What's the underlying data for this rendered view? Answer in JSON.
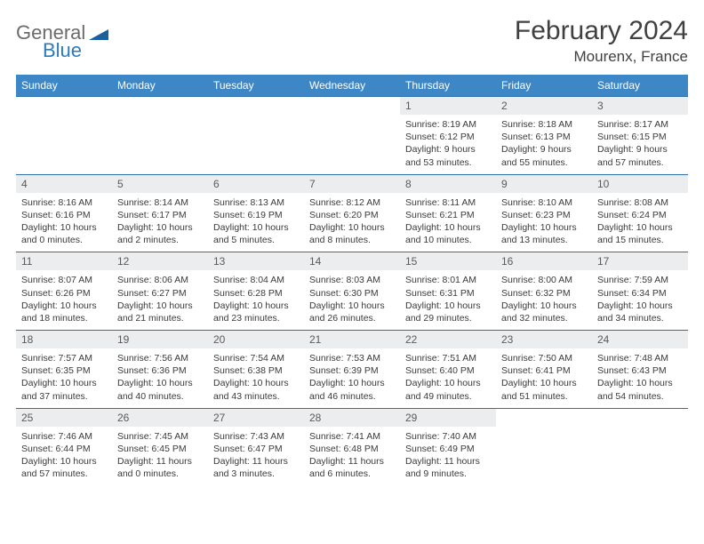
{
  "brand": {
    "word1": "General",
    "word2": "Blue",
    "logo_color": "#1c5f9e"
  },
  "header": {
    "title": "February 2024",
    "location": "Mourenx, France"
  },
  "theme": {
    "header_bg": "#3d87c7",
    "header_text": "#ffffff",
    "daynum_bg": "#ecedef",
    "rule_color": "#2f6fa8",
    "text_color": "#3a3a3a"
  },
  "columns": [
    "Sunday",
    "Monday",
    "Tuesday",
    "Wednesday",
    "Thursday",
    "Friday",
    "Saturday"
  ],
  "weeks": [
    {
      "nums": [
        "",
        "",
        "",
        "",
        "1",
        "2",
        "3"
      ],
      "cells": [
        null,
        null,
        null,
        null,
        {
          "sunrise": "8:19 AM",
          "sunset": "6:12 PM",
          "daylight": "9 hours and 53 minutes."
        },
        {
          "sunrise": "8:18 AM",
          "sunset": "6:13 PM",
          "daylight": "9 hours and 55 minutes."
        },
        {
          "sunrise": "8:17 AM",
          "sunset": "6:15 PM",
          "daylight": "9 hours and 57 minutes."
        }
      ]
    },
    {
      "nums": [
        "4",
        "5",
        "6",
        "7",
        "8",
        "9",
        "10"
      ],
      "cells": [
        {
          "sunrise": "8:16 AM",
          "sunset": "6:16 PM",
          "daylight": "10 hours and 0 minutes."
        },
        {
          "sunrise": "8:14 AM",
          "sunset": "6:17 PM",
          "daylight": "10 hours and 2 minutes."
        },
        {
          "sunrise": "8:13 AM",
          "sunset": "6:19 PM",
          "daylight": "10 hours and 5 minutes."
        },
        {
          "sunrise": "8:12 AM",
          "sunset": "6:20 PM",
          "daylight": "10 hours and 8 minutes."
        },
        {
          "sunrise": "8:11 AM",
          "sunset": "6:21 PM",
          "daylight": "10 hours and 10 minutes."
        },
        {
          "sunrise": "8:10 AM",
          "sunset": "6:23 PM",
          "daylight": "10 hours and 13 minutes."
        },
        {
          "sunrise": "8:08 AM",
          "sunset": "6:24 PM",
          "daylight": "10 hours and 15 minutes."
        }
      ]
    },
    {
      "nums": [
        "11",
        "12",
        "13",
        "14",
        "15",
        "16",
        "17"
      ],
      "cells": [
        {
          "sunrise": "8:07 AM",
          "sunset": "6:26 PM",
          "daylight": "10 hours and 18 minutes."
        },
        {
          "sunrise": "8:06 AM",
          "sunset": "6:27 PM",
          "daylight": "10 hours and 21 minutes."
        },
        {
          "sunrise": "8:04 AM",
          "sunset": "6:28 PM",
          "daylight": "10 hours and 23 minutes."
        },
        {
          "sunrise": "8:03 AM",
          "sunset": "6:30 PM",
          "daylight": "10 hours and 26 minutes."
        },
        {
          "sunrise": "8:01 AM",
          "sunset": "6:31 PM",
          "daylight": "10 hours and 29 minutes."
        },
        {
          "sunrise": "8:00 AM",
          "sunset": "6:32 PM",
          "daylight": "10 hours and 32 minutes."
        },
        {
          "sunrise": "7:59 AM",
          "sunset": "6:34 PM",
          "daylight": "10 hours and 34 minutes."
        }
      ]
    },
    {
      "nums": [
        "18",
        "19",
        "20",
        "21",
        "22",
        "23",
        "24"
      ],
      "cells": [
        {
          "sunrise": "7:57 AM",
          "sunset": "6:35 PM",
          "daylight": "10 hours and 37 minutes."
        },
        {
          "sunrise": "7:56 AM",
          "sunset": "6:36 PM",
          "daylight": "10 hours and 40 minutes."
        },
        {
          "sunrise": "7:54 AM",
          "sunset": "6:38 PM",
          "daylight": "10 hours and 43 minutes."
        },
        {
          "sunrise": "7:53 AM",
          "sunset": "6:39 PM",
          "daylight": "10 hours and 46 minutes."
        },
        {
          "sunrise": "7:51 AM",
          "sunset": "6:40 PM",
          "daylight": "10 hours and 49 minutes."
        },
        {
          "sunrise": "7:50 AM",
          "sunset": "6:41 PM",
          "daylight": "10 hours and 51 minutes."
        },
        {
          "sunrise": "7:48 AM",
          "sunset": "6:43 PM",
          "daylight": "10 hours and 54 minutes."
        }
      ]
    },
    {
      "nums": [
        "25",
        "26",
        "27",
        "28",
        "29",
        "",
        ""
      ],
      "cells": [
        {
          "sunrise": "7:46 AM",
          "sunset": "6:44 PM",
          "daylight": "10 hours and 57 minutes."
        },
        {
          "sunrise": "7:45 AM",
          "sunset": "6:45 PM",
          "daylight": "11 hours and 0 minutes."
        },
        {
          "sunrise": "7:43 AM",
          "sunset": "6:47 PM",
          "daylight": "11 hours and 3 minutes."
        },
        {
          "sunrise": "7:41 AM",
          "sunset": "6:48 PM",
          "daylight": "11 hours and 6 minutes."
        },
        {
          "sunrise": "7:40 AM",
          "sunset": "6:49 PM",
          "daylight": "11 hours and 9 minutes."
        },
        null,
        null
      ]
    }
  ],
  "labels": {
    "sunrise": "Sunrise: ",
    "sunset": "Sunset: ",
    "daylight": "Daylight: "
  }
}
